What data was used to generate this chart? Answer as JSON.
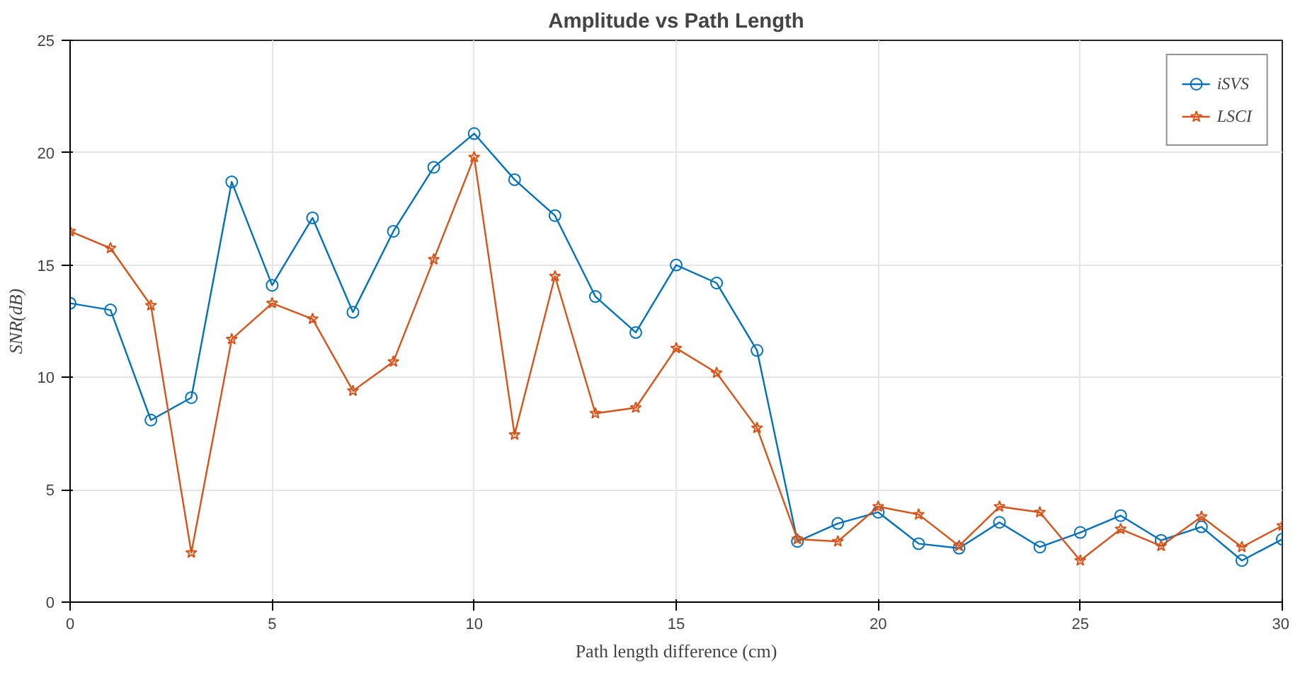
{
  "chart_data": {
    "type": "line",
    "title": "Amplitude vs Path Length",
    "xlabel": "Path length difference (cm)",
    "ylabel": "SNR(dB)",
    "x": [
      0,
      1,
      2,
      3,
      4,
      5,
      6,
      7,
      8,
      9,
      10,
      11,
      12,
      13,
      14,
      15,
      16,
      17,
      18,
      19,
      20,
      21,
      22,
      23,
      24,
      25,
      26,
      27,
      28,
      29,
      30
    ],
    "series": [
      {
        "name": "iSVS",
        "color": "#0072bd",
        "marker": "circle",
        "values": [
          13.3,
          13.0,
          8.1,
          9.1,
          18.7,
          14.1,
          17.1,
          12.9,
          16.5,
          19.35,
          20.85,
          18.8,
          17.2,
          13.6,
          12.0,
          15.0,
          14.2,
          11.2,
          2.7,
          3.5,
          4.0,
          2.6,
          2.4,
          3.55,
          2.45,
          3.1,
          3.85,
          2.75,
          3.35,
          1.85,
          2.8
        ]
      },
      {
        "name": "LSCI",
        "color": "#d95319",
        "marker": "star",
        "values": [
          16.5,
          15.75,
          13.2,
          2.2,
          11.7,
          13.3,
          12.6,
          9.4,
          10.7,
          15.25,
          19.8,
          7.45,
          14.5,
          8.4,
          8.65,
          11.3,
          10.2,
          7.75,
          2.8,
          2.7,
          4.25,
          3.9,
          2.5,
          4.25,
          4.0,
          1.85,
          3.25,
          2.5,
          3.8,
          2.45,
          3.4
        ]
      }
    ],
    "xlim": [
      0,
      30
    ],
    "ylim": [
      0,
      25
    ],
    "xticks": [
      0,
      5,
      10,
      15,
      20,
      25,
      30
    ],
    "yticks": [
      0,
      5,
      10,
      15,
      20,
      25
    ],
    "grid": true,
    "legend": "top right"
  }
}
